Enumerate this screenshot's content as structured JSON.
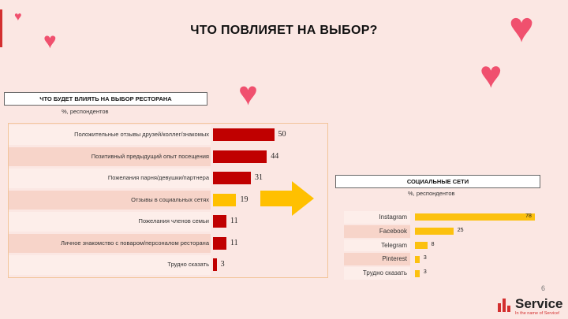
{
  "slide": {
    "title": "ЧТО ПОВЛИЯЕТ НА ВЫБОР?",
    "page_number": "6"
  },
  "logo": {
    "name": "Service",
    "tagline": "In the name of Service!",
    "brand_color": "#d32f2f"
  },
  "colors": {
    "red_bar": "#c00000",
    "yellow_bar": "#ffc000",
    "social_bar": "#fcc10f",
    "heart": "#f0506e",
    "background": "#fbe7e3"
  },
  "chart_data": [
    {
      "type": "bar",
      "orientation": "horizontal",
      "title": "ЧТО БУДЕТ ВЛИЯТЬ НА ВЫБОР РЕСТОРАНА",
      "subtitle": "%, респондентов",
      "categories": [
        "Положительные отзывы друзей/коллег/знакомых",
        "Позитивный предыдущий опыт посещения",
        "Пожелания парня/девушки/партнера",
        "Отзывы в социальных сетях",
        "Пожелания членов семьи",
        "Личное знакомство с поваром/персоналом ресторана",
        "Трудно сказать"
      ],
      "values": [
        50,
        44,
        31,
        19,
        11,
        11,
        3
      ],
      "highlight": [
        false,
        false,
        false,
        true,
        false,
        false,
        false
      ],
      "xlim": [
        0,
        100
      ]
    },
    {
      "type": "bar",
      "orientation": "horizontal",
      "title": "СОЦИАЛЬНЫЕ СЕТИ",
      "subtitle": "%, респондентов",
      "categories": [
        "Instagram",
        "Facebook",
        "Telegram",
        "Pinterest",
        "Трудно сказать"
      ],
      "values": [
        78,
        25,
        8,
        3,
        3
      ],
      "xlim": [
        0,
        100
      ]
    }
  ]
}
